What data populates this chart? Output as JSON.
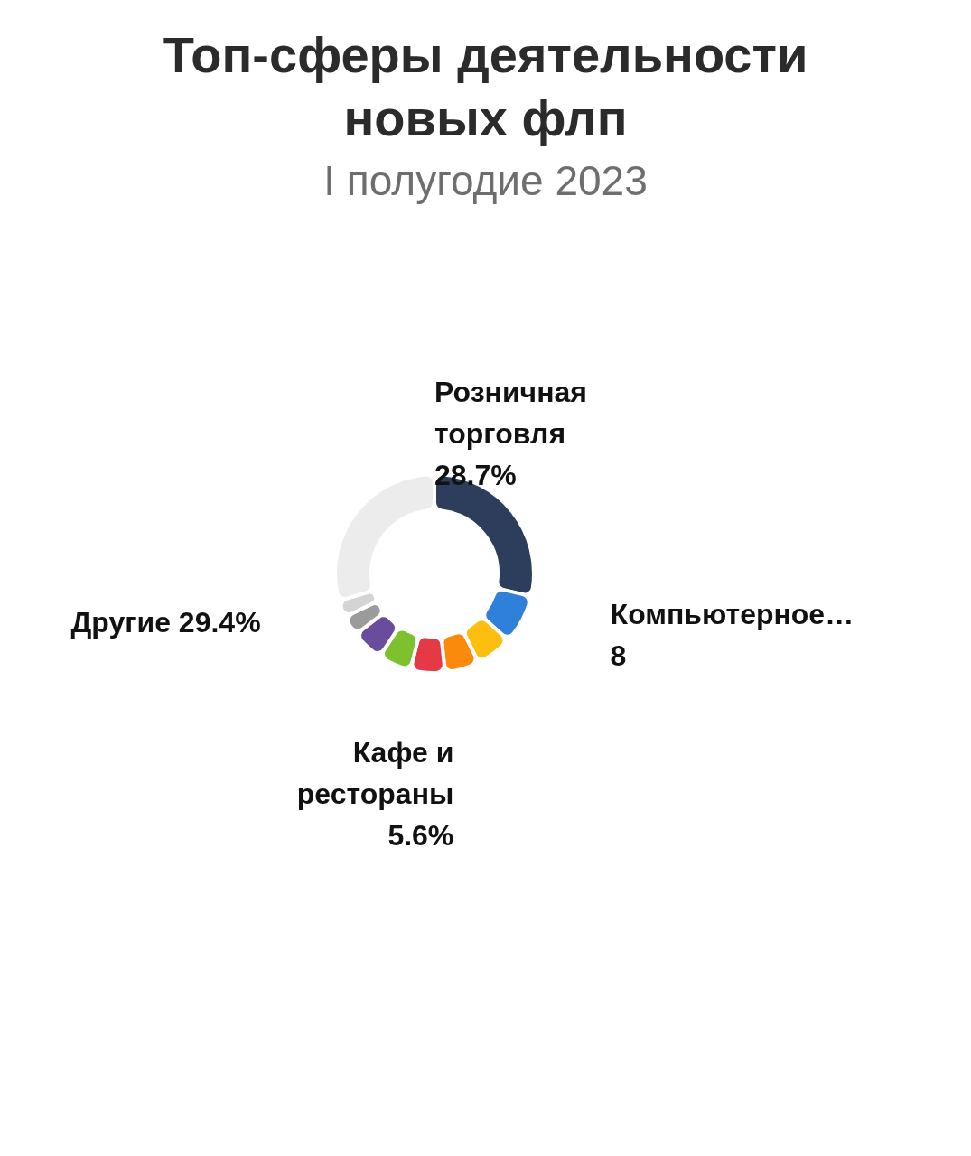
{
  "chart_data": {
    "type": "donut",
    "title": "Топ-сферы деятельности новых флп",
    "subtitle": "I полугодие 2023",
    "categories": [
      "Розничная торговля",
      "Компьютерное…",
      null,
      null,
      "Кафе и рестораны",
      null,
      null,
      null,
      null,
      "Другие"
    ],
    "values": [
      28.7,
      8,
      6,
      5.6,
      5.6,
      5.4,
      5.2,
      3.3,
      2.8,
      29.4
    ],
    "value_labels": [
      "28.7%",
      "8",
      null,
      null,
      "5.6%",
      null,
      null,
      null,
      null,
      "29.4%"
    ],
    "colors": [
      "#2c3e5c",
      "#2f80d8",
      "#fdbf0f",
      "#fb8a0c",
      "#e63946",
      "#7dc22e",
      "#6a4c9c",
      "#9b9b9b",
      "#d4d4d4",
      "#ececec"
    ],
    "legend": false
  }
}
